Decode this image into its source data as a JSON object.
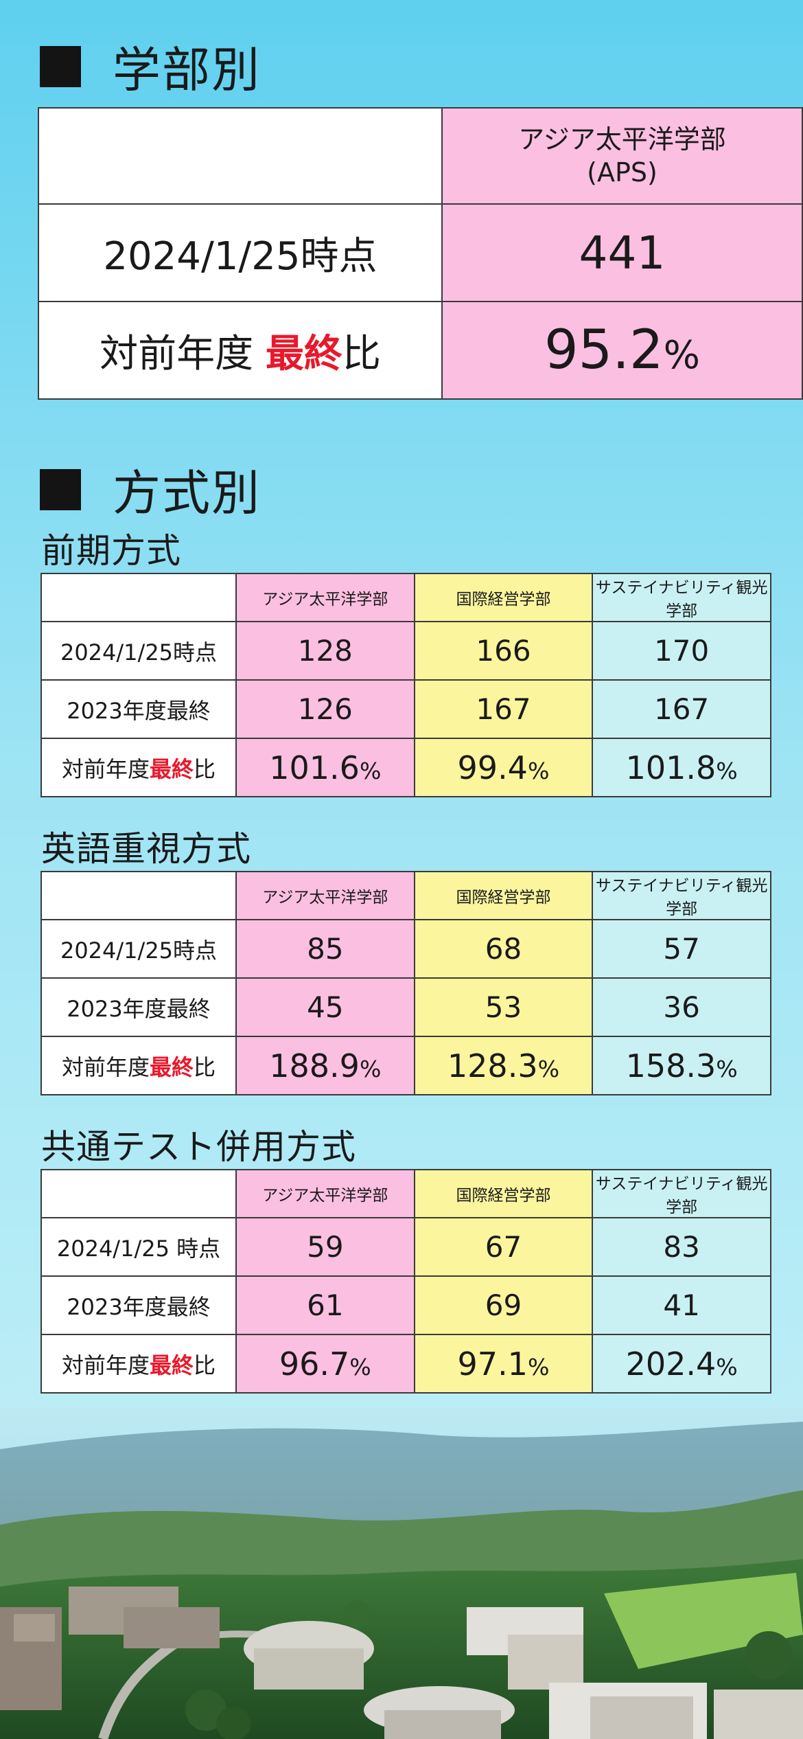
{
  "faculty_section": {
    "title": "学部別",
    "header": "アジア太平洋学部\n(APS)",
    "header_line1": "アジア太平洋学部",
    "header_line2": "(APS)",
    "row1_label": "2024/1/25時点",
    "row1_value": "441",
    "row2_label_pre": "対前年度 ",
    "row2_label_red": "最終",
    "row2_label_post": "比",
    "row2_value_num": "95.2",
    "row2_value_unit": "%"
  },
  "method_section": {
    "title": "方式別",
    "tables": [
      {
        "title": "前期方式",
        "headers": [
          "アジア太平洋学部",
          "国際経営学部",
          "サステイナビリティ観光学部"
        ],
        "row_labels": [
          "2024/1/25時点",
          "2023年度最終"
        ],
        "ratio_label_pre": "対前年度",
        "ratio_label_red": "最終",
        "ratio_label_post": "比",
        "current": [
          "128",
          "166",
          "170"
        ],
        "previous": [
          "126",
          "167",
          "167"
        ],
        "ratio_num": [
          "101.6",
          "99.4",
          "101.8"
        ],
        "unit": "%"
      },
      {
        "title": "英語重視方式",
        "headers": [
          "アジア太平洋学部",
          "国際経営学部",
          "サステイナビリティ観光学部"
        ],
        "row_labels": [
          "2024/1/25時点",
          "2023年度最終"
        ],
        "ratio_label_pre": "対前年度",
        "ratio_label_red": "最終",
        "ratio_label_post": "比",
        "current": [
          "85",
          "68",
          "57"
        ],
        "previous": [
          "45",
          "53",
          "36"
        ],
        "ratio_num": [
          "188.9",
          "128.3",
          "158.3"
        ],
        "unit": "%"
      },
      {
        "title": "共通テスト併用方式",
        "headers": [
          "アジア太平洋学部",
          "国際経営学部",
          "サステイナビリティ観光学部"
        ],
        "row_labels": [
          "2024/1/25 時点",
          "2023年度最終"
        ],
        "ratio_label_pre": "対前年度",
        "ratio_label_red": "最終",
        "ratio_label_post": "比",
        "current": [
          "59",
          "67",
          "83"
        ],
        "previous": [
          "61",
          "69",
          "41"
        ],
        "ratio_num": [
          "96.7",
          "97.1",
          "202.4"
        ],
        "unit": "%"
      }
    ]
  },
  "colors": {
    "pink": "#fbbfe1",
    "yellow": "#fbf59e",
    "cyan": "#c9f1f4",
    "red": "#e8192c",
    "sky": "#5fd0ef"
  }
}
